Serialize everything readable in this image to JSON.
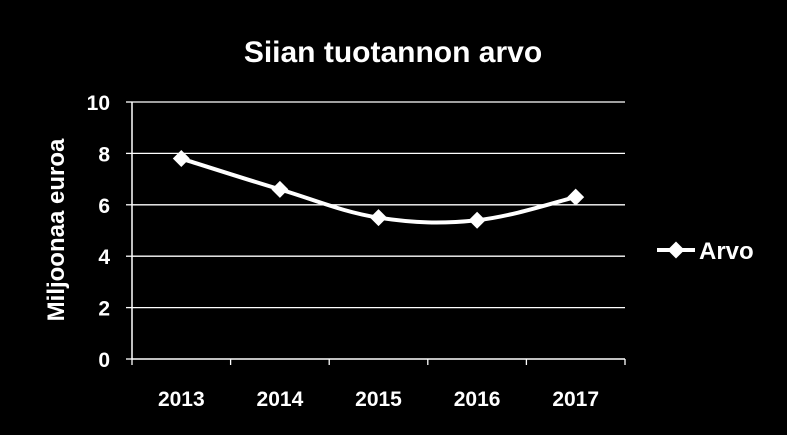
{
  "chart_data": {
    "type": "line",
    "title": "Siian tuotannon arvo",
    "xlabel": "",
    "ylabel": "Miljoonaa euroa",
    "categories": [
      "2013",
      "2014",
      "2015",
      "2016",
      "2017"
    ],
    "series": [
      {
        "name": "Arvo",
        "values": [
          7.8,
          6.6,
          5.5,
          5.4,
          6.3
        ]
      }
    ],
    "ylim": [
      0,
      10
    ],
    "yticks": [
      "0",
      "2",
      "4",
      "6",
      "8",
      "10"
    ],
    "grid": true,
    "legend": "right",
    "colors": {
      "background": "#000000",
      "line": "#ffffff",
      "grid": "#ffffff",
      "text": "#ffffff"
    }
  }
}
